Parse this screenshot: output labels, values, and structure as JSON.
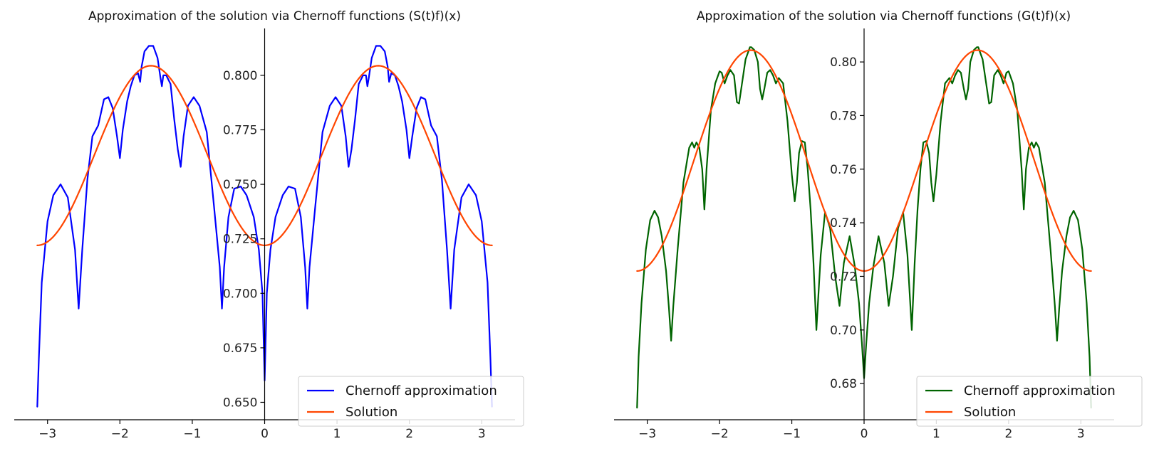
{
  "chart_data": [
    {
      "type": "line",
      "title": "Approximation of the solution via Chernoff functions (S(t)f)(x)",
      "xlabel": "",
      "ylabel": "",
      "xlim": [
        -3.46,
        3.46
      ],
      "ylim": [
        0.642,
        0.8215
      ],
      "xticks": [
        -3,
        -2,
        -1,
        0,
        1,
        2,
        3
      ],
      "xtick_labels": [
        "−3",
        "−2",
        "−1",
        "0",
        "1",
        "2",
        "3"
      ],
      "yticks": [
        0.65,
        0.675,
        0.7,
        0.725,
        0.75,
        0.775,
        0.8
      ],
      "ytick_labels": [
        "0.650",
        "0.675",
        "0.700",
        "0.725",
        "0.750",
        "0.775",
        "0.800"
      ],
      "spines": "centered at origin",
      "grid": false,
      "legend_position": "bottom-right",
      "series": [
        {
          "name": "Chernoff approximation",
          "color": "#0000ff",
          "x": [
            -3.1416,
            -3.12,
            -3.08,
            -3.0,
            -2.92,
            -2.82,
            -2.72,
            -2.62,
            -2.57,
            -2.52,
            -2.45,
            -2.38,
            -2.3,
            -2.22,
            -2.16,
            -2.1,
            -2.04,
            -2.0,
            -1.96,
            -1.9,
            -1.85,
            -1.8,
            -1.75,
            -1.72,
            -1.7,
            -1.66,
            -1.6,
            -1.57,
            -1.54,
            -1.48,
            -1.44,
            -1.42,
            -1.4,
            -1.36,
            -1.3,
            -1.25,
            -1.2,
            -1.16,
            -1.12,
            -1.06,
            -0.98,
            -0.9,
            -0.8,
            -0.7,
            -0.62,
            -0.59,
            -0.56,
            -0.5,
            -0.42,
            -0.33,
            -0.25,
            -0.15,
            -0.08,
            -0.03,
            0.0,
            0.03,
            0.08,
            0.15,
            0.25,
            0.33,
            0.42,
            0.5,
            0.56,
            0.59,
            0.62,
            0.7,
            0.8,
            0.9,
            0.98,
            1.06,
            1.12,
            1.16,
            1.2,
            1.25,
            1.3,
            1.36,
            1.4,
            1.42,
            1.44,
            1.48,
            1.54,
            1.57,
            1.6,
            1.66,
            1.7,
            1.72,
            1.75,
            1.8,
            1.85,
            1.9,
            1.96,
            2.0,
            2.04,
            2.1,
            2.16,
            2.22,
            2.3,
            2.38,
            2.45,
            2.52,
            2.57,
            2.62,
            2.72,
            2.82,
            2.92,
            3.0,
            3.08,
            3.12,
            3.1416
          ],
          "y": [
            0.648,
            0.67,
            0.705,
            0.733,
            0.745,
            0.75,
            0.744,
            0.72,
            0.693,
            0.72,
            0.752,
            0.772,
            0.777,
            0.789,
            0.79,
            0.785,
            0.772,
            0.762,
            0.775,
            0.788,
            0.795,
            0.8,
            0.801,
            0.797,
            0.804,
            0.811,
            0.8135,
            0.8135,
            0.8135,
            0.808,
            0.799,
            0.795,
            0.8,
            0.8,
            0.796,
            0.78,
            0.766,
            0.758,
            0.772,
            0.786,
            0.79,
            0.786,
            0.774,
            0.74,
            0.712,
            0.693,
            0.712,
            0.735,
            0.748,
            0.749,
            0.745,
            0.735,
            0.72,
            0.7,
            0.66,
            0.7,
            0.72,
            0.735,
            0.745,
            0.749,
            0.748,
            0.735,
            0.712,
            0.693,
            0.712,
            0.74,
            0.774,
            0.786,
            0.79,
            0.786,
            0.772,
            0.758,
            0.766,
            0.78,
            0.796,
            0.8,
            0.8,
            0.795,
            0.799,
            0.808,
            0.8135,
            0.8135,
            0.8135,
            0.811,
            0.804,
            0.797,
            0.801,
            0.8,
            0.795,
            0.788,
            0.775,
            0.762,
            0.772,
            0.785,
            0.79,
            0.789,
            0.777,
            0.772,
            0.752,
            0.72,
            0.693,
            0.72,
            0.744,
            0.75,
            0.745,
            0.733,
            0.705,
            0.67,
            0.648
          ]
        },
        {
          "name": "Solution",
          "color": "#ff4500",
          "function": "0.7632 - 0.0412*cos(2x)",
          "x_range": [
            -3.1416,
            3.1416
          ]
        }
      ]
    },
    {
      "type": "line",
      "title": "Approximation of the solution via Chernoff functions (G(t)f)(x)",
      "xlabel": "",
      "ylabel": "",
      "xlim": [
        -3.46,
        3.46
      ],
      "ylim": [
        0.6665,
        0.8125
      ],
      "xticks": [
        -3,
        -2,
        -1,
        0,
        1,
        2,
        3
      ],
      "xtick_labels": [
        "−3",
        "−2",
        "−1",
        "0",
        "1",
        "2",
        "3"
      ],
      "yticks": [
        0.68,
        0.7,
        0.72,
        0.74,
        0.76,
        0.78,
        0.8
      ],
      "ytick_labels": [
        "0.68",
        "0.70",
        "0.72",
        "0.74",
        "0.76",
        "0.78",
        "0.80"
      ],
      "spines": "centered at origin",
      "grid": false,
      "legend_position": "bottom-right",
      "series": [
        {
          "name": "Chernoff approximation",
          "color": "#006400",
          "x": [
            -3.1416,
            -3.12,
            -3.08,
            -3.02,
            -2.96,
            -2.9,
            -2.85,
            -2.8,
            -2.74,
            -2.7,
            -2.67,
            -2.64,
            -2.58,
            -2.5,
            -2.42,
            -2.38,
            -2.35,
            -2.32,
            -2.28,
            -2.24,
            -2.21,
            -2.18,
            -2.12,
            -2.06,
            -2.0,
            -1.97,
            -1.93,
            -1.89,
            -1.85,
            -1.8,
            -1.76,
            -1.73,
            -1.7,
            -1.64,
            -1.58,
            -1.56,
            -1.52,
            -1.47,
            -1.44,
            -1.41,
            -1.38,
            -1.34,
            -1.3,
            -1.26,
            -1.22,
            -1.18,
            -1.12,
            -1.06,
            -1.0,
            -0.96,
            -0.93,
            -0.9,
            -0.86,
            -0.82,
            -0.78,
            -0.74,
            -0.7,
            -0.66,
            -0.6,
            -0.54,
            -0.47,
            -0.4,
            -0.34,
            -0.28,
            -0.2,
            -0.13,
            -0.07,
            -0.03,
            0.0,
            0.03,
            0.07,
            0.13,
            0.2,
            0.28,
            0.34,
            0.4,
            0.47,
            0.54,
            0.6,
            0.66,
            0.7,
            0.74,
            0.78,
            0.82,
            0.86,
            0.9,
            0.93,
            0.96,
            1.0,
            1.06,
            1.12,
            1.18,
            1.22,
            1.26,
            1.3,
            1.34,
            1.38,
            1.41,
            1.44,
            1.47,
            1.52,
            1.56,
            1.58,
            1.64,
            1.7,
            1.73,
            1.76,
            1.8,
            1.85,
            1.89,
            1.93,
            1.97,
            2.0,
            2.06,
            2.12,
            2.18,
            2.21,
            2.24,
            2.28,
            2.32,
            2.35,
            2.38,
            2.42,
            2.5,
            2.58,
            2.64,
            2.67,
            2.7,
            2.74,
            2.8,
            2.85,
            2.9,
            2.96,
            3.02,
            3.08,
            3.12,
            3.1416
          ],
          "y": [
            0.671,
            0.69,
            0.71,
            0.73,
            0.741,
            0.7445,
            0.742,
            0.735,
            0.722,
            0.708,
            0.696,
            0.709,
            0.73,
            0.755,
            0.768,
            0.77,
            0.768,
            0.77,
            0.768,
            0.76,
            0.745,
            0.76,
            0.782,
            0.792,
            0.7965,
            0.796,
            0.792,
            0.795,
            0.797,
            0.795,
            0.785,
            0.7845,
            0.79,
            0.801,
            0.8055,
            0.8055,
            0.8045,
            0.8,
            0.79,
            0.786,
            0.79,
            0.796,
            0.797,
            0.795,
            0.792,
            0.794,
            0.792,
            0.778,
            0.758,
            0.748,
            0.755,
            0.766,
            0.7705,
            0.77,
            0.76,
            0.745,
            0.725,
            0.7,
            0.728,
            0.744,
            0.738,
            0.72,
            0.709,
            0.725,
            0.735,
            0.724,
            0.71,
            0.695,
            0.682,
            0.695,
            0.71,
            0.724,
            0.735,
            0.725,
            0.709,
            0.72,
            0.738,
            0.744,
            0.728,
            0.7,
            0.725,
            0.745,
            0.76,
            0.77,
            0.7705,
            0.766,
            0.755,
            0.748,
            0.758,
            0.778,
            0.792,
            0.794,
            0.792,
            0.795,
            0.797,
            0.796,
            0.79,
            0.786,
            0.79,
            0.8,
            0.8045,
            0.8055,
            0.8055,
            0.801,
            0.79,
            0.7845,
            0.785,
            0.795,
            0.797,
            0.795,
            0.792,
            0.796,
            0.7965,
            0.792,
            0.782,
            0.76,
            0.745,
            0.76,
            0.768,
            0.77,
            0.768,
            0.77,
            0.768,
            0.755,
            0.73,
            0.709,
            0.696,
            0.708,
            0.722,
            0.735,
            0.742,
            0.7445,
            0.741,
            0.73,
            0.71,
            0.69,
            0.671
          ]
        },
        {
          "name": "Solution",
          "color": "#ff4500",
          "function": "0.7632 - 0.0412*cos(2x)",
          "x_range": [
            -3.1416,
            3.1416
          ]
        }
      ]
    }
  ]
}
